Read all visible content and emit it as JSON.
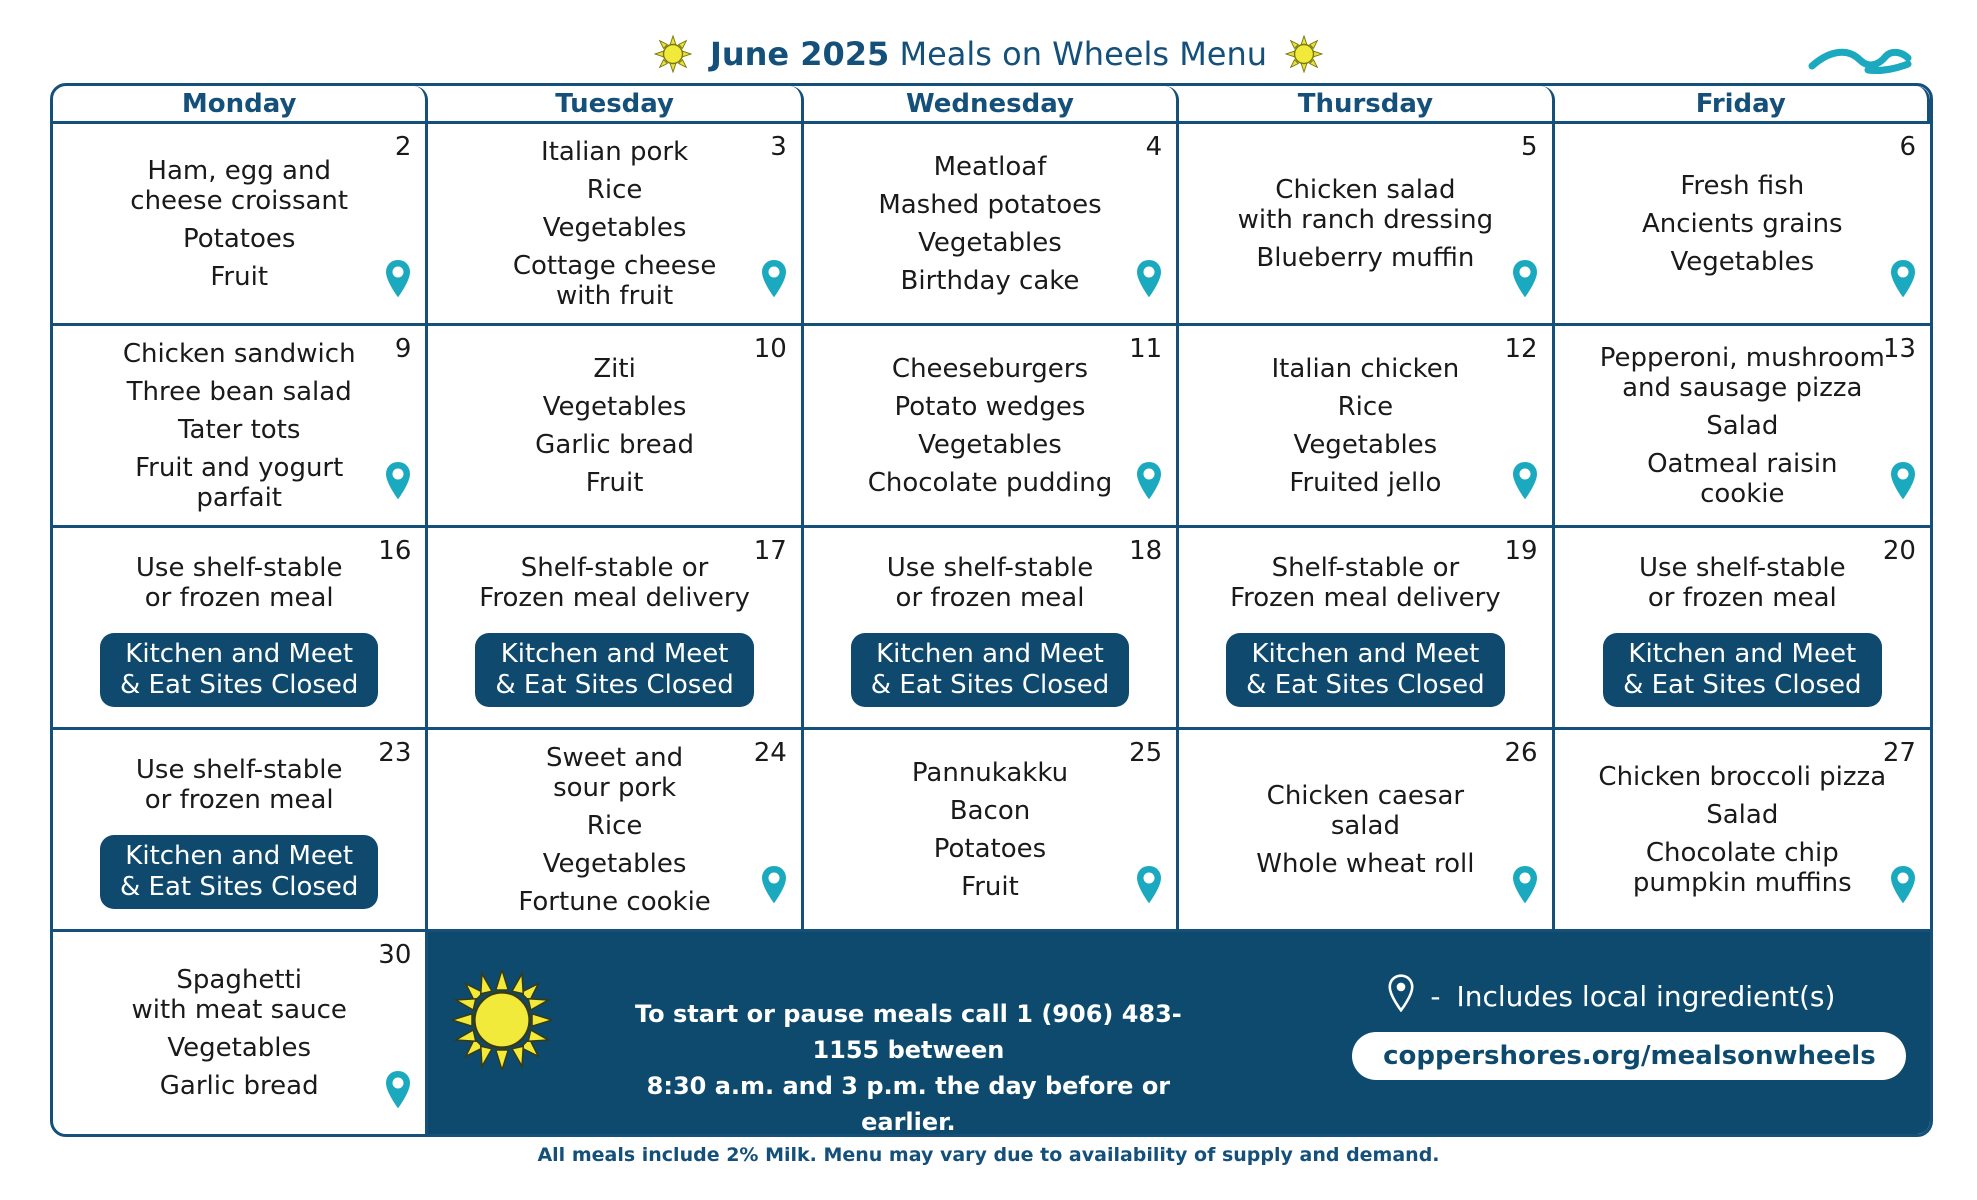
{
  "header": {
    "title_bold": "June 2025",
    "title_rest": "Meals on Wheels Menu"
  },
  "weekdays": [
    "Monday",
    "Tuesday",
    "Wednesday",
    "Thursday",
    "Friday"
  ],
  "weeks": [
    [
      {
        "day": "2",
        "items": [
          [
            "Ham, egg and",
            "cheese croissant"
          ],
          [
            "Potatoes"
          ],
          [
            "Fruit"
          ]
        ],
        "local": true
      },
      {
        "day": "3",
        "items": [
          [
            "Italian pork"
          ],
          [
            "Rice"
          ],
          [
            "Vegetables"
          ],
          [
            "Cottage cheese",
            "with fruit"
          ]
        ],
        "local": true
      },
      {
        "day": "4",
        "items": [
          [
            "Meatloaf"
          ],
          [
            "Mashed potatoes"
          ],
          [
            "Vegetables"
          ],
          [
            "Birthday cake"
          ]
        ],
        "local": true
      },
      {
        "day": "5",
        "items": [
          [
            "Chicken salad",
            "with ranch dressing"
          ],
          [
            "Blueberry muffin"
          ]
        ],
        "local": true
      },
      {
        "day": "6",
        "items": [
          [
            "Fresh fish"
          ],
          [
            "Ancients grains"
          ],
          [
            "Vegetables"
          ]
        ],
        "local": true
      }
    ],
    [
      {
        "day": "9",
        "items": [
          [
            "Chicken sandwich"
          ],
          [
            "Three bean salad"
          ],
          [
            "Tater tots"
          ],
          [
            "Fruit and yogurt",
            "parfait"
          ]
        ],
        "local": true
      },
      {
        "day": "10",
        "items": [
          [
            "Ziti"
          ],
          [
            "Vegetables"
          ],
          [
            "Garlic bread"
          ],
          [
            "Fruit"
          ]
        ],
        "local": false
      },
      {
        "day": "11",
        "items": [
          [
            "Cheeseburgers"
          ],
          [
            "Potato wedges"
          ],
          [
            "Vegetables"
          ],
          [
            "Chocolate pudding"
          ]
        ],
        "local": true
      },
      {
        "day": "12",
        "items": [
          [
            "Italian chicken"
          ],
          [
            "Rice"
          ],
          [
            "Vegetables"
          ],
          [
            "Fruited jello"
          ]
        ],
        "local": true
      },
      {
        "day": "13",
        "items": [
          [
            "Pepperoni, mushroom",
            "and sausage pizza"
          ],
          [
            "Salad"
          ],
          [
            "Oatmeal raisin",
            "cookie"
          ]
        ],
        "local": true
      }
    ],
    [
      {
        "day": "16",
        "items": [
          [
            "Use shelf-stable",
            "or frozen meal"
          ]
        ],
        "closed": [
          "Kitchen and Meet",
          "& Eat Sites Closed"
        ],
        "local": false
      },
      {
        "day": "17",
        "items": [
          [
            "Shelf-stable or",
            "Frozen meal delivery"
          ]
        ],
        "closed": [
          "Kitchen and Meet",
          "& Eat Sites Closed"
        ],
        "local": false
      },
      {
        "day": "18",
        "items": [
          [
            "Use shelf-stable",
            "or frozen meal"
          ]
        ],
        "closed": [
          "Kitchen and Meet",
          "& Eat Sites Closed"
        ],
        "local": false
      },
      {
        "day": "19",
        "items": [
          [
            "Shelf-stable or",
            "Frozen meal delivery"
          ]
        ],
        "closed": [
          "Kitchen and Meet",
          "& Eat Sites Closed"
        ],
        "local": false
      },
      {
        "day": "20",
        "items": [
          [
            "Use shelf-stable",
            "or frozen meal"
          ]
        ],
        "closed": [
          "Kitchen and Meet",
          "& Eat Sites Closed"
        ],
        "local": false
      }
    ],
    [
      {
        "day": "23",
        "items": [
          [
            "Use shelf-stable",
            "or frozen meal"
          ]
        ],
        "closed": [
          "Kitchen and Meet",
          "& Eat Sites Closed"
        ],
        "local": false
      },
      {
        "day": "24",
        "items": [
          [
            "Sweet and",
            "sour pork"
          ],
          [
            "Rice"
          ],
          [
            "Vegetables"
          ],
          [
            "Fortune cookie"
          ]
        ],
        "local": true
      },
      {
        "day": "25",
        "items": [
          [
            "Pannukakku"
          ],
          [
            "Bacon"
          ],
          [
            "Potatoes"
          ],
          [
            "Fruit"
          ]
        ],
        "local": true
      },
      {
        "day": "26",
        "items": [
          [
            "Chicken caesar",
            "salad"
          ],
          [
            "Whole wheat roll"
          ]
        ],
        "local": true
      },
      {
        "day": "27",
        "items": [
          [
            "Chicken broccoli pizza"
          ],
          [
            "Salad"
          ],
          [
            "Chocolate chip",
            "pumpkin muffins"
          ]
        ],
        "local": true
      }
    ]
  ],
  "last_week": {
    "day": "30",
    "items": [
      [
        "Spaghetti",
        "with meat sauce"
      ],
      [
        "Vegetables"
      ],
      [
        "Garlic bread"
      ]
    ],
    "local": true
  },
  "banner": {
    "phone_lines": [
      "To start or pause meals call 1 (906) 483-1155 between",
      "8:30 a.m. and 3 p.m. the day before or earlier."
    ],
    "legend_dash": "-",
    "legend_text": "Includes local ingredient(s)",
    "url": "coppershores.org/mealsonwheels"
  },
  "footer": "All meals include 2% Milk. Menu may vary due to availability of supply and demand.",
  "colors": {
    "navy": "#14507a",
    "banner": "#0d4a6d",
    "pin": "#1aa9bf",
    "sun": "#f2ea3a"
  },
  "icons": {
    "pin": "map-pin-icon",
    "sun": "sun-icon",
    "wave": "wave-logo-icon"
  }
}
